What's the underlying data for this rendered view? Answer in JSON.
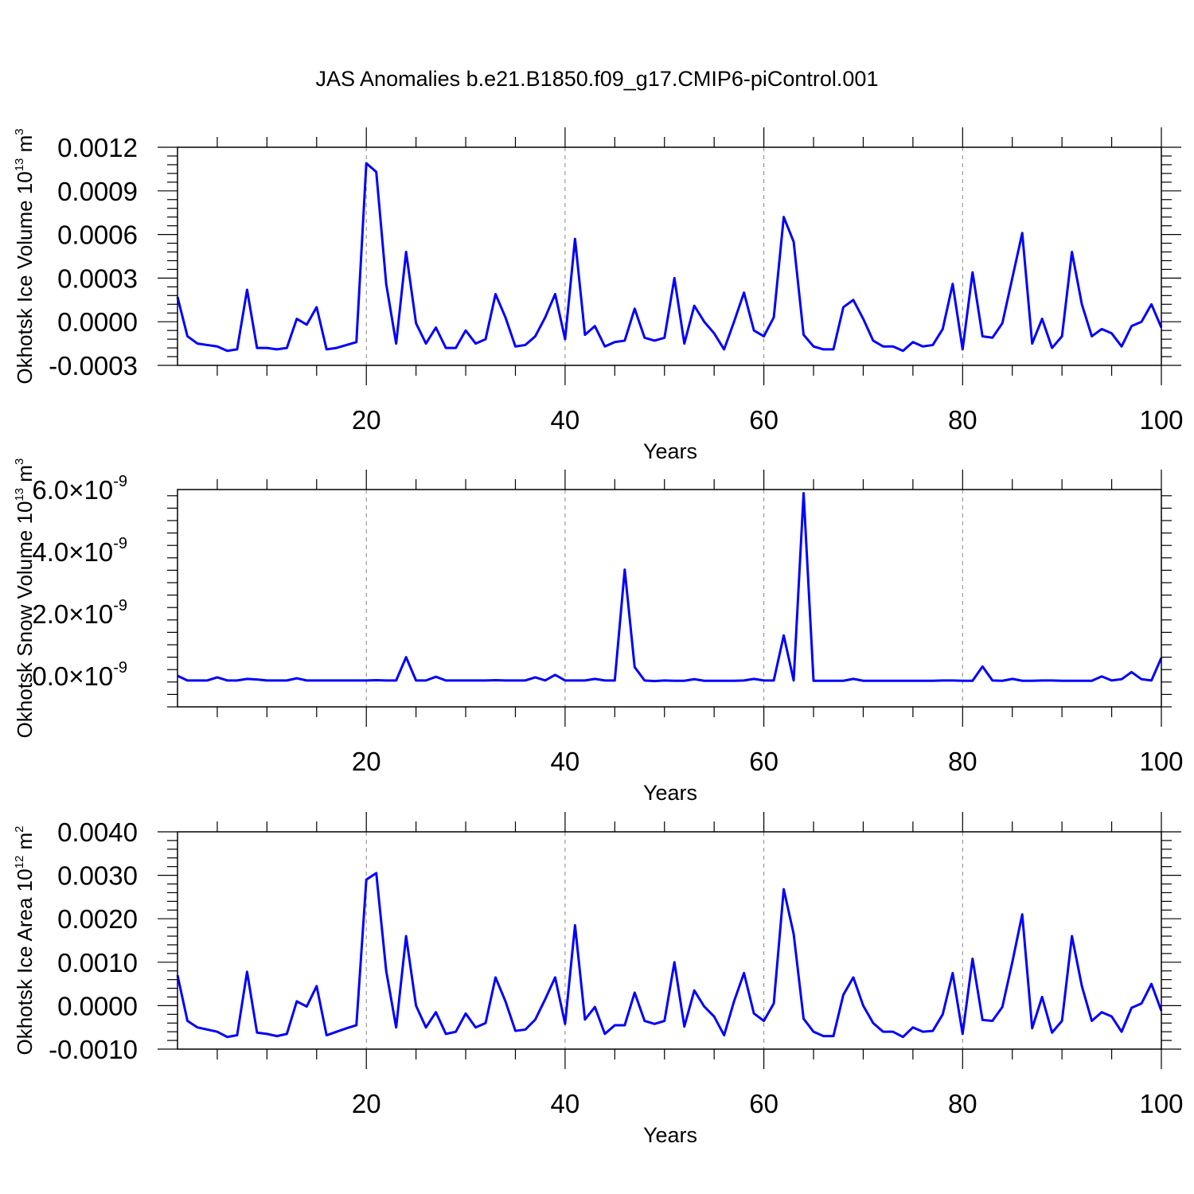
{
  "title": "JAS Anomalies b.e21.B1850.f09_g17.CMIP6-piControl.001",
  "colors": {
    "line": "#0000ff",
    "axis": "#000000",
    "grid": "#888888"
  },
  "panels": [
    {
      "ylabel_main": "Okhotsk Ice Volume 10",
      "ylabel_exp": "13",
      "ylabel_unit": " m",
      "ylabel_unit_exp": "3",
      "xlabel": "Years",
      "xtick_labels": [
        "20",
        "40",
        "60",
        "80",
        "100"
      ],
      "ytick_labels": [
        "0.0012",
        "0.0009",
        "0.0006",
        "0.0003",
        "0.0000",
        "-0.0003"
      ]
    },
    {
      "ylabel_main": "Okhotsk Snow Volume 10",
      "ylabel_exp": "13",
      "ylabel_unit": " m",
      "ylabel_unit_exp": "3",
      "xlabel": "Years",
      "xtick_labels": [
        "20",
        "40",
        "60",
        "80",
        "100"
      ],
      "ytick_mantissas": [
        "6.0",
        "4.0",
        "2.0",
        "0.0"
      ],
      "ytick_times": "×10",
      "ytick_exp": "-9"
    },
    {
      "ylabel_main": "Okhotsk Ice Area 10",
      "ylabel_exp": "12",
      "ylabel_unit": " m",
      "ylabel_unit_exp": "2",
      "xlabel": "Years",
      "xtick_labels": [
        "20",
        "40",
        "60",
        "80",
        "100"
      ],
      "ytick_labels": [
        "0.0040",
        "0.0030",
        "0.0020",
        "0.0010",
        "0.0000",
        "-0.0010"
      ]
    }
  ],
  "chart_data": [
    {
      "type": "line",
      "xlabel": "Years",
      "ylabel": "Okhotsk Ice Volume 10^13 m^3",
      "xlim": [
        1,
        100
      ],
      "ylim": [
        -0.0003,
        0.0012
      ],
      "yticks": [
        0.0012,
        0.0009,
        0.0006,
        0.0003,
        0.0,
        -0.0003
      ],
      "xticks": [
        20,
        40,
        60,
        80,
        100
      ],
      "grid": "vertical dashed at major x ticks",
      "x_start": 1,
      "values": [
        0.00017,
        -0.0001,
        -0.00015,
        -0.00016,
        -0.00017,
        -0.0002,
        -0.00019,
        0.00022,
        -0.00018,
        -0.00018,
        -0.00019,
        -0.00018,
        2e-05,
        -2e-05,
        0.0001,
        -0.00019,
        -0.00018,
        -0.00016,
        -0.00014,
        0.00109,
        0.00103,
        0.00026,
        -0.00015,
        0.00048,
        -1e-05,
        -0.00015,
        -4e-05,
        -0.00018,
        -0.00018,
        -6e-05,
        -0.00015,
        -0.00012,
        0.00019,
        3e-05,
        -0.00017,
        -0.00016,
        -0.0001,
        3e-05,
        0.00019,
        -0.00012,
        0.00057,
        -9e-05,
        -3e-05,
        -0.00017,
        -0.00014,
        -0.00013,
        9e-05,
        -0.00011,
        -0.00013,
        -0.00011,
        0.0003,
        -0.00015,
        0.00011,
        0.0,
        -8e-05,
        -0.00019,
        0.0,
        0.0002,
        -6e-05,
        -0.0001,
        3e-05,
        0.00072,
        0.00055,
        -9e-05,
        -0.00017,
        -0.00019,
        -0.00019,
        0.0001,
        0.00015,
        2e-05,
        -0.00013,
        -0.00017,
        -0.00017,
        -0.0002,
        -0.00014,
        -0.00017,
        -0.00016,
        -5e-05,
        0.00026,
        -0.00019,
        0.00034,
        -0.0001,
        -0.00011,
        -1e-05,
        0.0003,
        0.00061,
        -0.00015,
        2e-05,
        -0.00018,
        -0.0001,
        0.00048,
        0.00012,
        -0.0001,
        -5e-05,
        -8e-05,
        -0.00017,
        -3e-05,
        0.0,
        0.00012,
        -4e-05
      ]
    },
    {
      "type": "line",
      "xlabel": "Years",
      "ylabel": "Okhotsk Snow Volume 10^13 m^3",
      "xlim": [
        1,
        100
      ],
      "ylim": [
        -1e-09,
        6e-09
      ],
      "yticks": [
        6e-09,
        4e-09,
        2e-09,
        0.0
      ],
      "xticks": [
        20,
        40,
        60,
        80,
        100
      ],
      "grid": "vertical dashed at major x ticks",
      "x_start": 1,
      "values": [
        0.0,
        -1.5e-10,
        -1.5e-10,
        -1.5e-10,
        -5e-11,
        -1.5e-10,
        -1.5e-10,
        -1e-10,
        -1.2e-10,
        -1.5e-10,
        -1.5e-10,
        -1.5e-10,
        -8e-11,
        -1.5e-10,
        -1.5e-10,
        -1.5e-10,
        -1.5e-10,
        -1.5e-10,
        -1.5e-10,
        -1.5e-10,
        -1.4e-10,
        -1.5e-10,
        -1.5e-10,
        6e-10,
        -1.5e-10,
        -1.5e-10,
        -3e-11,
        -1.5e-10,
        -1.5e-10,
        -1.5e-10,
        -1.5e-10,
        -1.5e-10,
        -1.4e-10,
        -1.5e-10,
        -1.5e-10,
        -1.5e-10,
        -5e-11,
        -1.5e-10,
        3e-11,
        -1.5e-10,
        -1.5e-10,
        -1.5e-10,
        -1e-10,
        -1.5e-10,
        -1.5e-10,
        3.42e-09,
        2.8e-10,
        -1.5e-10,
        -1.7e-10,
        -1.5e-10,
        -1.6e-10,
        -1.6e-10,
        -1.1e-10,
        -1.6e-10,
        -1.6e-10,
        -1.6e-10,
        -1.6e-10,
        -1.5e-10,
        -1e-10,
        -1.5e-10,
        -1.5e-10,
        1.3e-09,
        -1.5e-10,
        5.88e-09,
        -1.6e-10,
        -1.6e-10,
        -1.6e-10,
        -1.6e-10,
        -1e-10,
        -1.6e-10,
        -1.6e-10,
        -1.6e-10,
        -1.6e-10,
        -1.6e-10,
        -1.6e-10,
        -1.6e-10,
        -1.6e-10,
        -1.5e-10,
        -1.5e-10,
        -1.6e-10,
        -1.6e-10,
        3e-10,
        -1.5e-10,
        -1.6e-10,
        -1e-10,
        -1.6e-10,
        -1.6e-10,
        -1.5e-10,
        -1.5e-10,
        -1.6e-10,
        -1.6e-10,
        -1.6e-10,
        -1.6e-10,
        -2e-11,
        -1.5e-10,
        -1.1e-10,
        1.2e-10,
        -1.1e-10,
        -1.5e-10,
        5.8e-10
      ]
    },
    {
      "type": "line",
      "xlabel": "Years",
      "ylabel": "Okhotsk Ice Area 10^12 m^2",
      "xlim": [
        1,
        100
      ],
      "ylim": [
        -0.001,
        0.004
      ],
      "yticks": [
        0.004,
        0.003,
        0.002,
        0.001,
        0.0,
        -0.001
      ],
      "xticks": [
        20,
        40,
        60,
        80,
        100
      ],
      "grid": "vertical dashed at major x ticks",
      "x_start": 1,
      "values": [
        0.0007,
        -0.00035,
        -0.0005,
        -0.00055,
        -0.0006,
        -0.00072,
        -0.00068,
        0.00078,
        -0.00062,
        -0.00065,
        -0.0007,
        -0.00065,
        0.0001,
        -2e-05,
        0.00045,
        -0.00068,
        -0.0006,
        -0.00052,
        -0.00045,
        0.0029,
        0.00305,
        0.0008,
        -0.0005,
        0.0016,
        0.0,
        -0.0005,
        -0.00015,
        -0.00065,
        -0.0006,
        -0.00018,
        -0.0005,
        -0.0004,
        0.00065,
        0.0001,
        -0.00058,
        -0.00055,
        -0.00032,
        0.00015,
        0.00065,
        -0.00042,
        0.00185,
        -0.00032,
        -3e-05,
        -0.00065,
        -0.00045,
        -0.00045,
        0.0003,
        -0.00035,
        -0.00042,
        -0.00035,
        0.001,
        -0.00048,
        0.00035,
        -2e-05,
        -0.00025,
        -0.00068,
        0.0001,
        0.00075,
        -0.00018,
        -0.00035,
        5e-05,
        0.00268,
        0.00165,
        -0.0003,
        -0.0006,
        -0.0007,
        -0.0007,
        0.00025,
        0.00065,
        0.0,
        -0.0004,
        -0.0006,
        -0.0006,
        -0.00072,
        -0.0005,
        -0.0006,
        -0.00058,
        -0.0002,
        0.00075,
        -0.00065,
        0.00108,
        -0.00033,
        -0.00035,
        -3e-05,
        0.001,
        0.0021,
        -0.00052,
        0.0002,
        -0.00062,
        -0.00035,
        0.0016,
        0.00045,
        -0.00035,
        -0.00015,
        -0.00025,
        -0.0006,
        -5e-05,
        5e-05,
        0.0005,
        -0.00012
      ]
    }
  ]
}
